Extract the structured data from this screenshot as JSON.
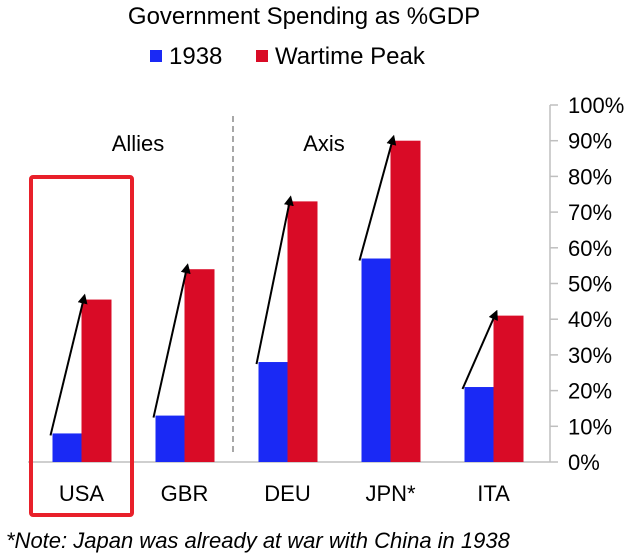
{
  "chart_data": {
    "type": "bar",
    "title": "Government Spending as %GDP",
    "categories": [
      "USA",
      "GBR",
      "DEU",
      "JPN*",
      "ITA"
    ],
    "series": [
      {
        "name": "1938",
        "values": [
          8,
          13,
          28,
          57,
          21
        ],
        "color": "#1a29f5"
      },
      {
        "name": "Wartime Peak",
        "values": [
          45.5,
          54,
          73,
          90,
          41
        ],
        "color": "#d90b26"
      }
    ],
    "ylim": [
      0,
      100
    ],
    "yticks": [
      "0%",
      "10%",
      "20%",
      "30%",
      "40%",
      "50%",
      "60%",
      "70%",
      "80%",
      "90%",
      "100%"
    ],
    "yaxis_position": "right",
    "legend_position": "top",
    "groups": [
      {
        "label": "Allies",
        "categories": [
          "USA",
          "GBR"
        ]
      },
      {
        "label": "Axis",
        "categories": [
          "DEU",
          "JPN*",
          "ITA"
        ]
      }
    ],
    "highlight_category": "USA",
    "highlight_color": "#e8202a",
    "annotations": "arrow from 1938 value to wartime peak value for each country",
    "note": "*Note: Japan was already at war with China in 1938"
  }
}
